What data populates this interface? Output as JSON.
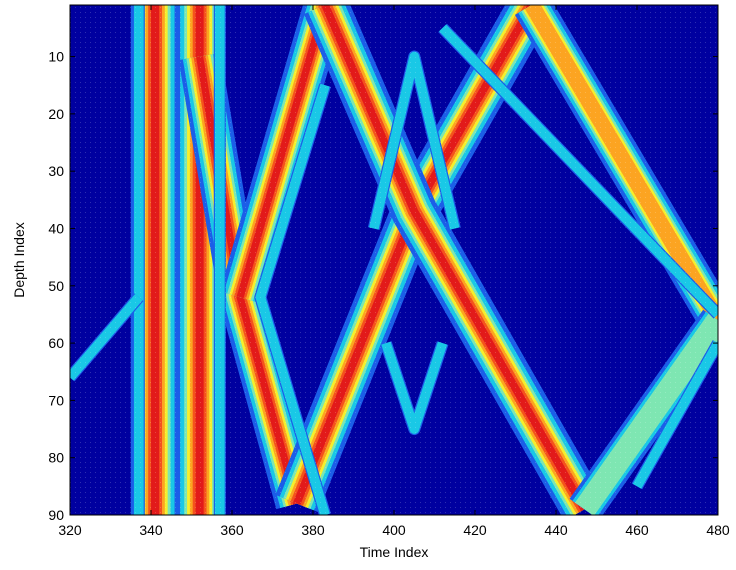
{
  "chart_data": {
    "type": "heatmap",
    "title": "",
    "xlabel": "Time Index",
    "ylabel": "Depth Index",
    "xlim": [
      320,
      480
    ],
    "ylim": [
      90,
      1
    ],
    "x_ticks": [
      320,
      340,
      360,
      380,
      400,
      420,
      440,
      460,
      480
    ],
    "y_ticks": [
      10,
      20,
      30,
      40,
      50,
      60,
      70,
      80,
      90
    ],
    "y_axis_reversed": true,
    "colormap": "jet",
    "grid": false,
    "legend": "none",
    "background_color": "#00009f",
    "features": [
      {
        "kind": "band",
        "points": [
          [
            341,
            1
          ],
          [
            341,
            90
          ]
        ],
        "intensity": 1.0,
        "width": 4.0
      },
      {
        "kind": "band",
        "points": [
          [
            352,
            1
          ],
          [
            352,
            90
          ]
        ],
        "intensity": 0.95,
        "width": 4.0
      },
      {
        "kind": "band",
        "points": [
          [
            352,
            10
          ],
          [
            362,
            52
          ],
          [
            376,
            88
          ]
        ],
        "intensity": 0.95,
        "width": 3.5
      },
      {
        "kind": "band",
        "points": [
          [
            362,
            52
          ],
          [
            383,
            1
          ]
        ],
        "intensity": 0.95,
        "width": 3.5
      },
      {
        "kind": "band",
        "points": [
          [
            376,
            88
          ],
          [
            405,
            37
          ],
          [
            434,
            1
          ]
        ],
        "intensity": 0.95,
        "width": 3.8
      },
      {
        "kind": "band",
        "points": [
          [
            383,
            1
          ],
          [
            405,
            37
          ],
          [
            447,
            89
          ]
        ],
        "intensity": 0.95,
        "width": 3.8
      },
      {
        "kind": "band",
        "points": [
          [
            434,
            1
          ],
          [
            480,
            56
          ]
        ],
        "intensity": 0.72,
        "width": 3.2
      },
      {
        "kind": "band",
        "points": [
          [
            447,
            89
          ],
          [
            480,
            56
          ]
        ],
        "intensity": 0.45,
        "width": 3.0
      },
      {
        "kind": "band",
        "points": [
          [
            337,
            1
          ],
          [
            337,
            90
          ]
        ],
        "intensity": 0.35,
        "width": 1.0
      },
      {
        "kind": "band",
        "points": [
          [
            357,
            1
          ],
          [
            357,
            90
          ]
        ],
        "intensity": 0.35,
        "width": 1.0
      },
      {
        "kind": "band",
        "points": [
          [
            383,
            15
          ],
          [
            367,
            52
          ],
          [
            383,
            90
          ]
        ],
        "intensity": 0.3,
        "width": 1.0
      },
      {
        "kind": "band",
        "points": [
          [
            395,
            40
          ],
          [
            405,
            10
          ],
          [
            415,
            40
          ]
        ],
        "intensity": 0.3,
        "width": 1.0
      },
      {
        "kind": "band",
        "points": [
          [
            398,
            60
          ],
          [
            405,
            75
          ],
          [
            412,
            60
          ]
        ],
        "intensity": 0.3,
        "width": 1.0
      },
      {
        "kind": "band",
        "points": [
          [
            320,
            66
          ],
          [
            337,
            52
          ]
        ],
        "intensity": 0.28,
        "width": 1.0
      },
      {
        "kind": "band",
        "points": [
          [
            412,
            5
          ],
          [
            480,
            55
          ]
        ],
        "intensity": 0.28,
        "width": 1.0
      },
      {
        "kind": "band",
        "points": [
          [
            460,
            85
          ],
          [
            480,
            60
          ]
        ],
        "intensity": 0.3,
        "width": 1.0
      }
    ]
  }
}
